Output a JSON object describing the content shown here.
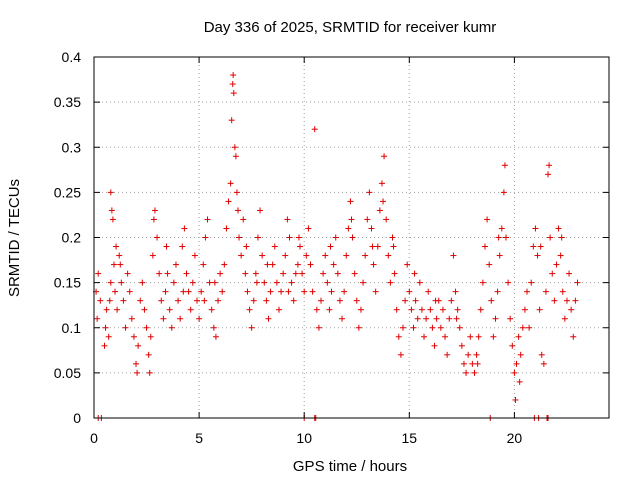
{
  "chart_data": {
    "type": "scatter",
    "title": "Day 336 of 2025, SRMTID for receiver kumr",
    "xlabel": "GPS time / hours",
    "ylabel": "SRMTID / TECUs",
    "xlim": [
      0,
      24.5
    ],
    "ylim": [
      0,
      0.4
    ],
    "x_ticks": [
      0,
      5,
      10,
      15,
      20
    ],
    "x_tick_labels": [
      "0",
      "5",
      "10",
      "15",
      "20"
    ],
    "y_ticks": [
      0,
      0.05,
      0.1,
      0.15,
      0.2,
      0.25,
      0.3,
      0.35,
      0.4
    ],
    "y_tick_labels": [
      "0",
      "0.05",
      "0.1",
      "0.15",
      "0.2",
      "0.25",
      "0.3",
      "0.35",
      "0.4"
    ],
    "grid": true,
    "marker": "plus",
    "color": "#e00000",
    "series": [
      {
        "name": "SRMTID",
        "points": [
          [
            0.1,
            0.14
          ],
          [
            0.15,
            0.11
          ],
          [
            0.2,
            0.16
          ],
          [
            0.3,
            0.13
          ],
          [
            0.5,
            0.08
          ],
          [
            0.55,
            0.1
          ],
          [
            0.6,
            0.12
          ],
          [
            0.7,
            0.09
          ],
          [
            0.75,
            0.13
          ],
          [
            0.8,
            0.15
          ],
          [
            0.8,
            0.25
          ],
          [
            0.85,
            0.23
          ],
          [
            0.9,
            0.22
          ],
          [
            0.95,
            0.17
          ],
          [
            1.0,
            0.14
          ],
          [
            1.1,
            0.12
          ],
          [
            1.2,
            0.18
          ],
          [
            1.3,
            0.15
          ],
          [
            1.4,
            0.13
          ],
          [
            1.5,
            0.1
          ],
          [
            1.6,
            0.16
          ],
          [
            1.7,
            0.14
          ],
          [
            1.8,
            0.11
          ],
          [
            1.9,
            0.09
          ],
          [
            2.0,
            0.06
          ],
          [
            2.05,
            0.05
          ],
          [
            2.1,
            0.08
          ],
          [
            2.2,
            0.13
          ],
          [
            2.3,
            0.15
          ],
          [
            2.4,
            0.12
          ],
          [
            2.5,
            0.1
          ],
          [
            2.6,
            0.07
          ],
          [
            2.65,
            0.05
          ],
          [
            2.7,
            0.09
          ],
          [
            2.8,
            0.18
          ],
          [
            2.85,
            0.22
          ],
          [
            2.9,
            0.23
          ],
          [
            3.0,
            0.2
          ],
          [
            3.1,
            0.16
          ],
          [
            3.2,
            0.13
          ],
          [
            3.3,
            0.11
          ],
          [
            3.4,
            0.14
          ],
          [
            3.5,
            0.16
          ],
          [
            3.6,
            0.12
          ],
          [
            3.7,
            0.1
          ],
          [
            3.8,
            0.15
          ],
          [
            3.9,
            0.17
          ],
          [
            4.0,
            0.13
          ],
          [
            4.1,
            0.11
          ],
          [
            4.2,
            0.19
          ],
          [
            4.3,
            0.21
          ],
          [
            4.4,
            0.16
          ],
          [
            4.5,
            0.14
          ],
          [
            4.6,
            0.12
          ],
          [
            4.7,
            0.15
          ],
          [
            4.8,
            0.18
          ],
          [
            4.9,
            0.13
          ],
          [
            5.0,
            0.11
          ],
          [
            5.1,
            0.14
          ],
          [
            5.2,
            0.17
          ],
          [
            5.3,
            0.2
          ],
          [
            5.4,
            0.22
          ],
          [
            5.5,
            0.15
          ],
          [
            5.6,
            0.12
          ],
          [
            5.7,
            0.1
          ],
          [
            5.8,
            0.09
          ],
          [
            5.9,
            0.13
          ],
          [
            6.0,
            0.16
          ],
          [
            6.1,
            0.14
          ],
          [
            6.2,
            0.17
          ],
          [
            6.3,
            0.21
          ],
          [
            6.4,
            0.24
          ],
          [
            6.5,
            0.26
          ],
          [
            6.55,
            0.33
          ],
          [
            6.6,
            0.37
          ],
          [
            6.62,
            0.38
          ],
          [
            6.65,
            0.36
          ],
          [
            6.7,
            0.3
          ],
          [
            6.75,
            0.29
          ],
          [
            6.8,
            0.25
          ],
          [
            6.85,
            0.23
          ],
          [
            6.9,
            0.2
          ],
          [
            7.0,
            0.18
          ],
          [
            7.1,
            0.22
          ],
          [
            7.2,
            0.16
          ],
          [
            7.3,
            0.14
          ],
          [
            7.4,
            0.12
          ],
          [
            7.5,
            0.1
          ],
          [
            7.6,
            0.13
          ],
          [
            7.7,
            0.16
          ],
          [
            7.8,
            0.2
          ],
          [
            7.9,
            0.23
          ],
          [
            8.0,
            0.18
          ],
          [
            8.1,
            0.15
          ],
          [
            8.2,
            0.13
          ],
          [
            8.3,
            0.11
          ],
          [
            8.4,
            0.14
          ],
          [
            8.5,
            0.17
          ],
          [
            8.6,
            0.19
          ],
          [
            8.7,
            0.15
          ],
          [
            8.8,
            0.12
          ],
          [
            8.9,
            0.14
          ],
          [
            9.0,
            0.16
          ],
          [
            9.1,
            0.18
          ],
          [
            9.2,
            0.22
          ],
          [
            9.3,
            0.2
          ],
          [
            9.4,
            0.15
          ],
          [
            9.5,
            0.13
          ],
          [
            9.6,
            0.16
          ],
          [
            9.7,
            0.17
          ],
          [
            9.8,
            0.19
          ],
          [
            9.9,
            0.16
          ],
          [
            10.0,
            0.14
          ],
          [
            10.1,
            0.18
          ],
          [
            10.2,
            0.21
          ],
          [
            10.3,
            0.17
          ],
          [
            10.4,
            0.14
          ],
          [
            10.5,
            0.32
          ],
          [
            10.6,
            0.12
          ],
          [
            10.7,
            0.1
          ],
          [
            10.8,
            0.13
          ],
          [
            10.9,
            0.16
          ],
          [
            11.0,
            0.18
          ],
          [
            11.1,
            0.15
          ],
          [
            11.2,
            0.12
          ],
          [
            11.3,
            0.14
          ],
          [
            11.4,
            0.17
          ],
          [
            11.5,
            0.2
          ],
          [
            11.6,
            0.16
          ],
          [
            11.7,
            0.13
          ],
          [
            11.8,
            0.11
          ],
          [
            11.9,
            0.14
          ],
          [
            12.0,
            0.18
          ],
          [
            12.1,
            0.21
          ],
          [
            12.2,
            0.24
          ],
          [
            12.3,
            0.2
          ],
          [
            12.4,
            0.16
          ],
          [
            12.5,
            0.13
          ],
          [
            12.6,
            0.1
          ],
          [
            12.7,
            0.12
          ],
          [
            12.8,
            0.15
          ],
          [
            12.9,
            0.18
          ],
          [
            13.0,
            0.22
          ],
          [
            13.1,
            0.25
          ],
          [
            13.2,
            0.21
          ],
          [
            13.3,
            0.17
          ],
          [
            13.4,
            0.14
          ],
          [
            13.5,
            0.19
          ],
          [
            13.6,
            0.23
          ],
          [
            13.7,
            0.26
          ],
          [
            13.8,
            0.29
          ],
          [
            13.9,
            0.22
          ],
          [
            14.0,
            0.18
          ],
          [
            14.1,
            0.15
          ],
          [
            14.2,
            0.2
          ],
          [
            14.3,
            0.16
          ],
          [
            14.4,
            0.12
          ],
          [
            14.5,
            0.09
          ],
          [
            14.6,
            0.07
          ],
          [
            14.7,
            0.1
          ],
          [
            14.8,
            0.13
          ],
          [
            14.9,
            0.17
          ],
          [
            15.0,
            0.14
          ],
          [
            15.1,
            0.12
          ],
          [
            15.2,
            0.1
          ],
          [
            15.3,
            0.13
          ],
          [
            15.4,
            0.11
          ],
          [
            15.5,
            0.15
          ],
          [
            15.6,
            0.12
          ],
          [
            15.7,
            0.09
          ],
          [
            15.8,
            0.11
          ],
          [
            15.9,
            0.14
          ],
          [
            16.0,
            0.12
          ],
          [
            16.1,
            0.1
          ],
          [
            16.2,
            0.08
          ],
          [
            16.3,
            0.11
          ],
          [
            16.4,
            0.13
          ],
          [
            16.5,
            0.1
          ],
          [
            16.6,
            0.12
          ],
          [
            16.7,
            0.09
          ],
          [
            16.8,
            0.07
          ],
          [
            16.9,
            0.11
          ],
          [
            17.0,
            0.13
          ],
          [
            17.1,
            0.18
          ],
          [
            17.2,
            0.14
          ],
          [
            17.3,
            0.12
          ],
          [
            17.4,
            0.1
          ],
          [
            17.5,
            0.08
          ],
          [
            17.6,
            0.06
          ],
          [
            17.7,
            0.05
          ],
          [
            17.8,
            0.07
          ],
          [
            17.9,
            0.09
          ],
          [
            18.0,
            0.06
          ],
          [
            18.1,
            0.05
          ],
          [
            18.2,
            0.07
          ],
          [
            18.3,
            0.09
          ],
          [
            18.4,
            0.12
          ],
          [
            18.5,
            0.15
          ],
          [
            18.6,
            0.19
          ],
          [
            18.7,
            0.22
          ],
          [
            18.8,
            0.17
          ],
          [
            18.9,
            0.13
          ],
          [
            19.0,
            0.09
          ],
          [
            19.1,
            0.11
          ],
          [
            19.2,
            0.14
          ],
          [
            19.3,
            0.18
          ],
          [
            19.4,
            0.21
          ],
          [
            19.5,
            0.25
          ],
          [
            19.55,
            0.28
          ],
          [
            19.6,
            0.2
          ],
          [
            19.7,
            0.15
          ],
          [
            19.8,
            0.11
          ],
          [
            19.9,
            0.08
          ],
          [
            20.0,
            0.05
          ],
          [
            20.05,
            0.02
          ],
          [
            20.1,
            0.06
          ],
          [
            20.2,
            0.09
          ],
          [
            20.3,
            0.07
          ],
          [
            20.4,
            0.1
          ],
          [
            20.5,
            0.12
          ],
          [
            20.6,
            0.14
          ],
          [
            20.7,
            0.1
          ],
          [
            20.8,
            0.15
          ],
          [
            20.9,
            0.19
          ],
          [
            21.0,
            0.21
          ],
          [
            21.1,
            0.18
          ],
          [
            21.2,
            0.12
          ],
          [
            21.3,
            0.07
          ],
          [
            21.4,
            0.06
          ],
          [
            21.5,
            0.14
          ],
          [
            21.6,
            0.27
          ],
          [
            21.65,
            0.28
          ],
          [
            21.7,
            0.2
          ],
          [
            21.8,
            0.16
          ],
          [
            21.9,
            0.13
          ],
          [
            22.0,
            0.17
          ],
          [
            22.1,
            0.21
          ],
          [
            22.2,
            0.18
          ],
          [
            22.3,
            0.14
          ],
          [
            22.4,
            0.11
          ],
          [
            22.5,
            0.13
          ],
          [
            22.6,
            0.16
          ],
          [
            22.7,
            0.12
          ],
          [
            22.8,
            0.09
          ],
          [
            22.9,
            0.13
          ],
          [
            23.0,
            0.15
          ],
          [
            1.05,
            0.19
          ],
          [
            1.25,
            0.17
          ],
          [
            3.45,
            0.19
          ],
          [
            4.25,
            0.14
          ],
          [
            5.25,
            0.13
          ],
          [
            5.75,
            0.15
          ],
          [
            7.25,
            0.19
          ],
          [
            7.75,
            0.15
          ],
          [
            8.25,
            0.17
          ],
          [
            9.25,
            0.14
          ],
          [
            9.75,
            0.2
          ],
          [
            11.25,
            0.19
          ],
          [
            12.25,
            0.22
          ],
          [
            13.25,
            0.19
          ],
          [
            13.75,
            0.24
          ],
          [
            14.25,
            0.19
          ],
          [
            15.25,
            0.16
          ],
          [
            16.25,
            0.13
          ],
          [
            17.25,
            0.11
          ],
          [
            18.25,
            0.06
          ],
          [
            19.25,
            0.2
          ],
          [
            20.25,
            0.04
          ],
          [
            21.25,
            0.19
          ],
          [
            22.25,
            0.2
          ],
          [
            0.2,
            0
          ],
          [
            0.35,
            0
          ],
          [
            10.0,
            0
          ],
          [
            10.5,
            0
          ],
          [
            10.55,
            0
          ],
          [
            18.85,
            0
          ],
          [
            20.95,
            0
          ],
          [
            21.15,
            0
          ],
          [
            21.55,
            0
          ],
          [
            21.6,
            0
          ]
        ]
      }
    ]
  }
}
